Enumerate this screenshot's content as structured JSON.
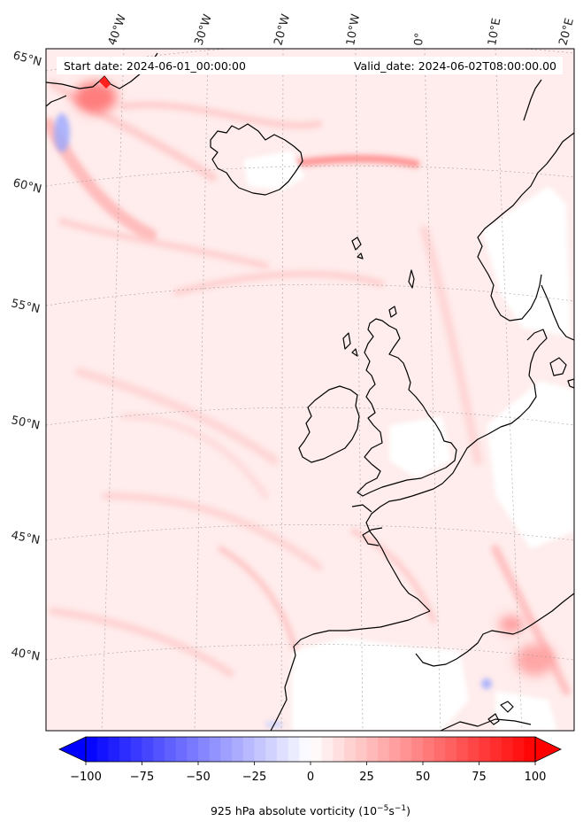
{
  "header": {
    "start_label": "Start date: 2024-06-01_00:00:00",
    "valid_label": "Valid_date: 2024-06-02T08:00:00.00"
  },
  "map": {
    "lon_labels": [
      "40°W",
      "30°W",
      "20°W",
      "10°W",
      "0°",
      "10°E",
      "20°E"
    ],
    "lat_labels": [
      "65°N",
      "60°N",
      "55°N",
      "50°N",
      "45°N",
      "40°N"
    ]
  },
  "colorbar": {
    "ticks": [
      "−100",
      "−75",
      "−50",
      "−25",
      "0",
      "25",
      "50",
      "75",
      "100"
    ],
    "label_main": "925 hPa absolute vorticity (10",
    "label_exp1": "−5",
    "label_mid": "s",
    "label_exp2": "−1",
    "label_end": ")",
    "vmin": -100,
    "vmax": 100,
    "levels": 40,
    "extend": "both"
  },
  "colors": {
    "min": "#0000ff",
    "mid": "#ffffff",
    "max": "#ff0000",
    "background_field": "#ffecec",
    "coast": "#000000"
  }
}
